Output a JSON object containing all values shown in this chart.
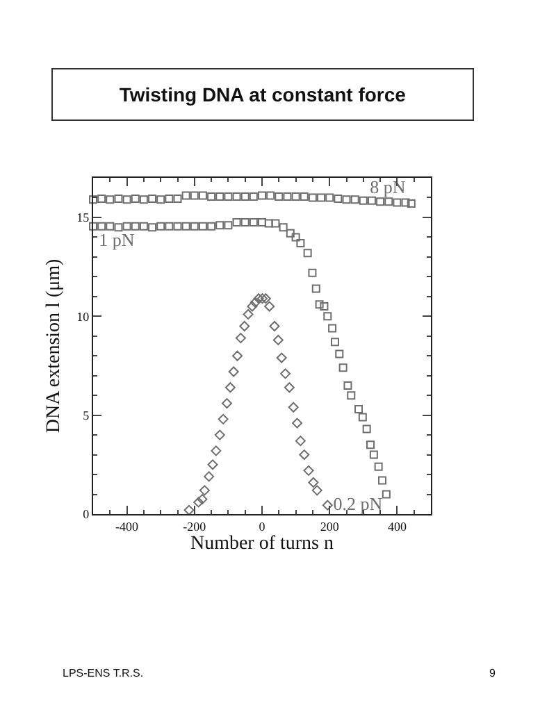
{
  "chart_data": {
    "type": "scatter",
    "title": "Twisting DNA at constant force",
    "xlabel": "Number of turns n",
    "ylabel": "DNA extension l (μm)",
    "xlim": [
      -500,
      500
    ],
    "xticks": [
      -400,
      -200,
      0,
      200,
      400
    ],
    "ylim": [
      0,
      17
    ],
    "yticks": [
      0,
      5,
      10,
      15
    ],
    "grid": false,
    "legend": false,
    "series": [
      {
        "name": "8 pN",
        "color": "#6e6e6e",
        "marker": "square",
        "x": [
          -500,
          -475,
          -450,
          -425,
          -400,
          -375,
          -350,
          -325,
          -300,
          -275,
          -250,
          -225,
          -200,
          -175,
          -150,
          -125,
          -100,
          -75,
          -50,
          -25,
          0,
          25,
          50,
          75,
          100,
          125,
          150,
          175,
          200,
          225,
          250,
          275,
          300,
          325,
          350,
          375,
          400,
          425,
          442
        ],
        "values": [
          15.9,
          15.95,
          15.9,
          15.95,
          15.9,
          15.95,
          15.9,
          15.95,
          15.9,
          15.95,
          15.95,
          16.1,
          16.1,
          16.1,
          16.05,
          16.05,
          16.05,
          16.05,
          16.05,
          16.05,
          16.1,
          16.1,
          16.05,
          16.05,
          16.05,
          16.05,
          16.0,
          16.0,
          16.0,
          15.95,
          15.9,
          15.9,
          15.85,
          15.85,
          15.8,
          15.8,
          15.75,
          15.75,
          15.7
        ]
      },
      {
        "name": "1 pN",
        "color": "#6e6e6e",
        "marker": "square",
        "x": [
          -500,
          -475,
          -450,
          -425,
          -400,
          -375,
          -350,
          -325,
          -300,
          -275,
          -250,
          -225,
          -200,
          -175,
          -150,
          -125,
          -100,
          -75,
          -50,
          -25,
          0,
          20,
          40,
          63,
          84,
          100,
          114,
          135,
          149,
          160,
          170,
          184,
          194,
          208,
          216,
          229,
          240,
          254,
          264,
          286,
          298,
          310,
          321,
          331,
          345,
          356,
          368
        ],
        "values": [
          14.55,
          14.55,
          14.55,
          14.5,
          14.55,
          14.55,
          14.55,
          14.5,
          14.55,
          14.55,
          14.55,
          14.55,
          14.55,
          14.55,
          14.55,
          14.6,
          14.6,
          14.75,
          14.75,
          14.75,
          14.75,
          14.7,
          14.7,
          14.5,
          14.2,
          14.0,
          13.7,
          13.2,
          12.2,
          11.4,
          10.6,
          10.5,
          10.0,
          9.4,
          8.7,
          8.1,
          7.4,
          6.5,
          6.0,
          5.3,
          4.9,
          4.3,
          3.5,
          3.0,
          2.4,
          1.7,
          1.0
        ]
      },
      {
        "name": "0.2 pN",
        "color": "#6e6e6e",
        "marker": "diamond",
        "x": [
          -216,
          -188,
          -177,
          -170,
          -157,
          -146,
          -136,
          -125,
          -115,
          -104,
          -94,
          -84,
          -73,
          -63,
          -52,
          -41,
          -29,
          -20,
          -10,
          1,
          11,
          22,
          37,
          48,
          58,
          69,
          81,
          93,
          104,
          114,
          125,
          138,
          152,
          163,
          194
        ],
        "values": [
          0.2,
          0.6,
          0.75,
          1.2,
          1.9,
          2.5,
          3.2,
          4.0,
          4.8,
          5.6,
          6.4,
          7.2,
          8.0,
          8.9,
          9.5,
          10.1,
          10.5,
          10.7,
          10.9,
          10.9,
          10.9,
          10.5,
          9.5,
          8.8,
          7.9,
          7.1,
          6.4,
          5.4,
          4.6,
          3.7,
          3.0,
          2.2,
          1.6,
          1.2,
          0.45
        ]
      }
    ],
    "annotations": [
      "LPS-ENS T.R.S.",
      "9"
    ]
  }
}
